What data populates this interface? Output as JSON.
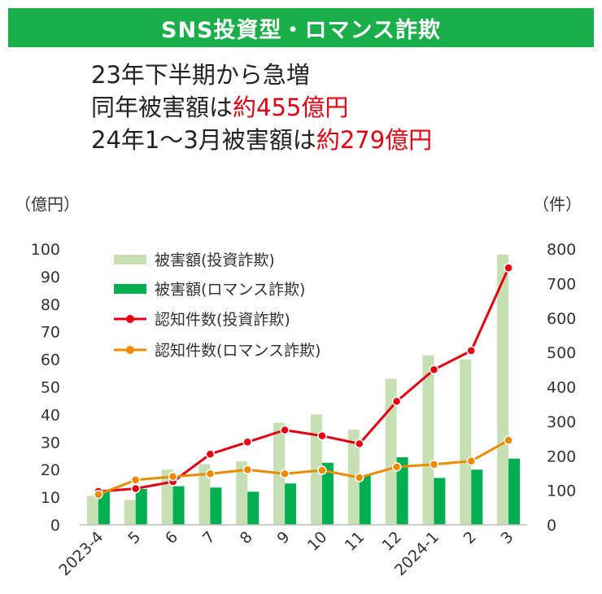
{
  "banner": {
    "title": "SNS投資型・ロマンス詐欺"
  },
  "headline": {
    "line1": "23年下半期から急増",
    "line2_prefix": "同年被害額は",
    "line2_value": "約455億円",
    "line3_prefix": "24年1～3月被害額は",
    "line3_value": "約279億円"
  },
  "colors": {
    "banner": "#1aaf4b",
    "accent_red": "#e60012",
    "investment_bar": "#c6e0b4",
    "romance_bar": "#00b050",
    "investment_line": "#e60012",
    "romance_line": "#ed8b00"
  },
  "chart_data": {
    "type": "bar",
    "categories": [
      "2023-4",
      "5",
      "6",
      "7",
      "8",
      "9",
      "10",
      "11",
      "12",
      "2024-1",
      "2",
      "3"
    ],
    "left_axis": {
      "label": "（億円）",
      "min": 0,
      "max": 100,
      "ticks": [
        "0",
        "10",
        "20",
        "30",
        "40",
        "50",
        "60",
        "70",
        "80",
        "90",
        "100"
      ]
    },
    "right_axis": {
      "label": "（件）",
      "min": 0,
      "max": 800,
      "ticks": [
        "0",
        "100",
        "200",
        "300",
        "400",
        "500",
        "600",
        "700",
        "800"
      ]
    },
    "series": [
      {
        "name": "被害額(投資詐欺)",
        "kind": "bar",
        "axis": "left",
        "values": [
          10.5,
          9,
          20,
          22,
          23,
          37,
          40,
          34.5,
          53,
          61.5,
          60,
          98
        ]
      },
      {
        "name": "被害額(ロマンス詐欺)",
        "kind": "bar",
        "axis": "left",
        "values": [
          12,
          13,
          14,
          13.5,
          12,
          15,
          22.5,
          18,
          24.5,
          17,
          20,
          24
        ]
      },
      {
        "name": "認知件数(投資詐欺)",
        "kind": "line",
        "axis": "right",
        "values": [
          97,
          105,
          125,
          205,
          240,
          275,
          258,
          235,
          358,
          450,
          505,
          745
        ]
      },
      {
        "name": "認知件数(ロマンス詐欺)",
        "kind": "line",
        "axis": "right",
        "values": [
          88,
          130,
          140,
          148,
          160,
          148,
          158,
          137,
          168,
          175,
          185,
          245
        ]
      }
    ],
    "legend_position": "top-left",
    "grid": false
  }
}
